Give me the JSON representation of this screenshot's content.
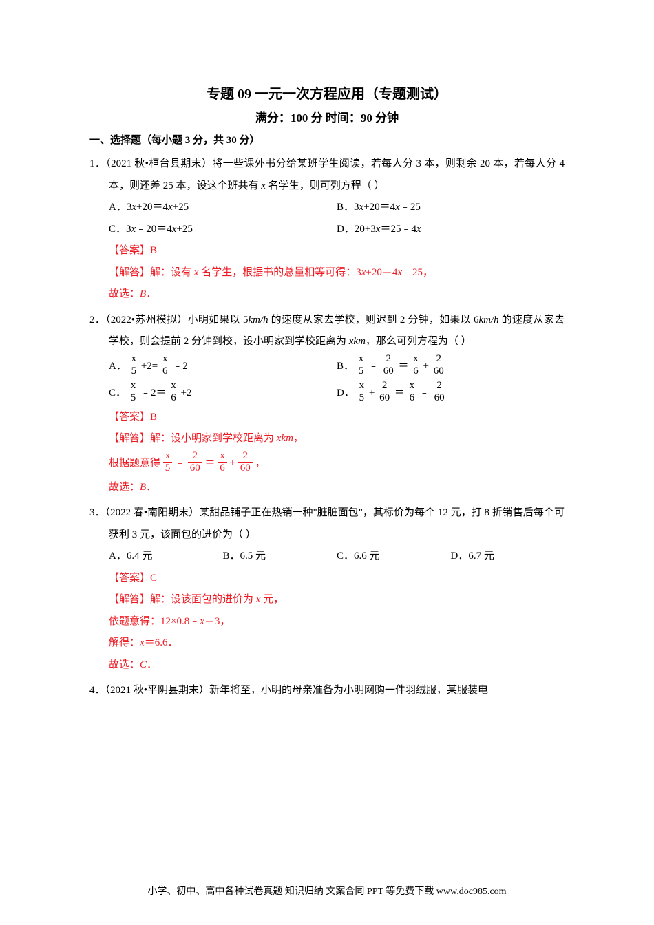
{
  "title": "专题 09 一元一次方程应用（专题测试）",
  "subtitle": "满分：100 分    时间：90 分钟",
  "section_header": "一、选择题（每小题 3 分，共 30 分）",
  "q1": {
    "prefix": "1．（2021 秋•桓台县期末）将一些课外书分给某班学生阅读，若每人分 3 本，则剩余 20 本，若每人分 4 本，则还差 25 本，设这个班共有 ",
    "mid": " 名学生，则可列方程（    ）",
    "choiceA": "A．3",
    "choiceA2": "+20＝4",
    "choiceA3": "+25",
    "choiceB": "B．3",
    "choiceB2": "+20＝4",
    "choiceB3": "﹣25",
    "choiceC": "C．3",
    "choiceC2": "﹣20＝4",
    "choiceC3": "+25",
    "choiceD": "D．20+3",
    "choiceD2": "＝25﹣4",
    "answer_label": "【答案】B",
    "explain1": "【解答】解：设有 ",
    "explain2": " 名学生，根据书的总量相等可得：3",
    "explain3": "+20＝4",
    "explain4": "﹣25，",
    "conclusion": "故选："
  },
  "q2": {
    "text1": "2．（2022•苏州模拟）小明如果以 5",
    "text2": " 的速度从家去学校，则迟到 2 分钟，如果以 6",
    "text3": " 的速度从家去学校，则会提前 2 分钟到校，设小明家到学校距离为 ",
    "text4": "，那么可列方程为（    ）",
    "A_label": "A．",
    "B_label": "B．",
    "C_label": "C．",
    "D_label": "D．",
    "answer_label": "【答案】B",
    "explain1": "【解答】解：设小明家到学校距离为 ",
    "explain2": "，",
    "explain3_prefix": "根据题意得",
    "explain_comma": "，",
    "conclusion": "故选："
  },
  "q3": {
    "text": "3．（2022 春•南阳期末）某甜品铺子正在热销一种\"脏脏面包\"，其标价为每个 12 元，打 8 折销售后每个可获利 3 元，该面包的进价为（    ）",
    "A": "A．6.4 元",
    "B": "B．6.5 元",
    "C": "C．6.6 元",
    "D": "D．6.7 元",
    "answer_label": "【答案】C",
    "explain1": "【解答】解：设该面包的进价为 ",
    "explain1b": " 元，",
    "explain2a": "依题意得：12×0.8﹣",
    "explain2b": "＝3，",
    "explain3a": "解得：",
    "explain3b": "＝6.6．",
    "conclusion": "故选："
  },
  "q4": {
    "text": "4．（2021 秋•平阴县期末）新年将至，小明的母亲准备为小明网购一件羽绒服，某服装电"
  },
  "footer": "小学、初中、高中各种试卷真题  知识归纳  文案合同  PPT 等免费下载  www.doc985.com",
  "vars": {
    "x": "x",
    "km_h": "km/h",
    "xkm": "xkm",
    "B": "B",
    "C": "C",
    "period": "．",
    "n5": "5",
    "n6": "6",
    "n2": "2",
    "n60": "60",
    "plus2": "+2=",
    "m2": "﹣2",
    "m2eq": "﹣2＝",
    "p2": "+2",
    "minus": "﹣",
    "plus": "+",
    "eq": "＝"
  }
}
